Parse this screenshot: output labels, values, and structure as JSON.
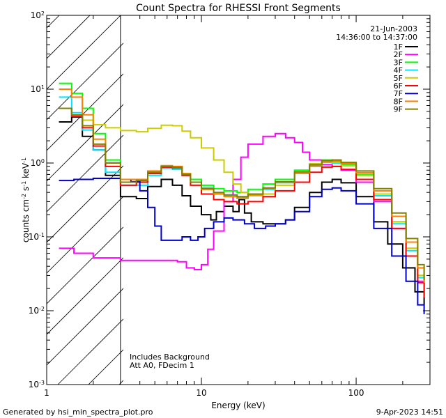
{
  "chart_data": {
    "type": "line",
    "title": "Count Spectra for RHESSI Front Segments",
    "xlabel": "Energy (keV)",
    "ylabel_parts": [
      "counts cm",
      "-2",
      " s",
      "-1",
      " keV",
      "-1"
    ],
    "xscale": "log",
    "yscale": "log",
    "xlim": [
      1,
      300
    ],
    "ylim": [
      0.001,
      100
    ],
    "x_ticks": [
      {
        "v": 1,
        "label": "1"
      },
      {
        "v": 10,
        "label": "10"
      },
      {
        "v": 100,
        "label": "100"
      }
    ],
    "y_ticks": [
      {
        "v": 0.001,
        "base": "10",
        "exp": "-3"
      },
      {
        "v": 0.01,
        "base": "10",
        "exp": "-2"
      },
      {
        "v": 0.1,
        "base": "10",
        "exp": "-1"
      },
      {
        "v": 1,
        "base": "10",
        "exp": "0"
      },
      {
        "v": 10,
        "base": "10",
        "exp": "1"
      },
      {
        "v": 100,
        "base": "10",
        "exp": "2"
      }
    ],
    "date_label": "21-Jun-2003",
    "time_label": "14:36:00 to 14:37:00",
    "hatched_region_kev": [
      1,
      3
    ],
    "annotations": [
      "Includes Background",
      "Att A0, FDecim 1"
    ],
    "series": [
      {
        "name": "1F",
        "color": "#000000",
        "points": [
          [
            1.2,
            3.6
          ],
          [
            1.45,
            4.2
          ],
          [
            1.7,
            2.3
          ],
          [
            2.0,
            1.5
          ],
          [
            2.4,
            0.68
          ],
          [
            3.0,
            0.35
          ],
          [
            3.8,
            0.33
          ],
          [
            4.5,
            0.48
          ],
          [
            5.5,
            0.6
          ],
          [
            6.5,
            0.5
          ],
          [
            7.5,
            0.36
          ],
          [
            8.5,
            0.26
          ],
          [
            10,
            0.2
          ],
          [
            11.5,
            0.17
          ],
          [
            12.5,
            0.22
          ],
          [
            14,
            0.26
          ],
          [
            16,
            0.22
          ],
          [
            17.5,
            0.32
          ],
          [
            19,
            0.21
          ],
          [
            21,
            0.16
          ],
          [
            25,
            0.15
          ],
          [
            30,
            0.15
          ],
          [
            35,
            0.17
          ],
          [
            40,
            0.25
          ],
          [
            50,
            0.4
          ],
          [
            60,
            0.55
          ],
          [
            70,
            0.6
          ],
          [
            80,
            0.54
          ],
          [
            100,
            0.35
          ],
          [
            130,
            0.16
          ],
          [
            160,
            0.08
          ],
          [
            200,
            0.038
          ],
          [
            240,
            0.018
          ],
          [
            275,
            0.012
          ]
        ]
      },
      {
        "name": "2F",
        "color": "#ff00ff",
        "points": [
          [
            1.2,
            0.07
          ],
          [
            1.5,
            0.06
          ],
          [
            2.0,
            0.052
          ],
          [
            3.0,
            0.048
          ],
          [
            5.0,
            0.048
          ],
          [
            7.0,
            0.046
          ],
          [
            8.0,
            0.038
          ],
          [
            9.0,
            0.036
          ],
          [
            10,
            0.042
          ],
          [
            11,
            0.068
          ],
          [
            12,
            0.12
          ],
          [
            14,
            0.3
          ],
          [
            16,
            0.6
          ],
          [
            18,
            1.2
          ],
          [
            20,
            1.8
          ],
          [
            25,
            2.3
          ],
          [
            30,
            2.5
          ],
          [
            35,
            2.2
          ],
          [
            40,
            1.9
          ],
          [
            45,
            1.4
          ],
          [
            50,
            1.1
          ],
          [
            60,
            0.95
          ],
          [
            70,
            0.9
          ],
          [
            80,
            0.8
          ],
          [
            100,
            0.55
          ],
          [
            130,
            0.3
          ],
          [
            170,
            0.13
          ],
          [
            210,
            0.055
          ],
          [
            250,
            0.025
          ],
          [
            275,
            0.016
          ]
        ]
      },
      {
        "name": "3F",
        "color": "#00ff00",
        "points": [
          [
            1.2,
            12
          ],
          [
            1.45,
            8.8
          ],
          [
            1.7,
            5.5
          ],
          [
            2.0,
            2.5
          ],
          [
            2.4,
            1.1
          ],
          [
            3.0,
            0.6
          ],
          [
            3.8,
            0.58
          ],
          [
            4.5,
            0.75
          ],
          [
            5.5,
            0.9
          ],
          [
            6.5,
            0.88
          ],
          [
            7.5,
            0.72
          ],
          [
            8.5,
            0.6
          ],
          [
            10,
            0.5
          ],
          [
            12,
            0.45
          ],
          [
            14,
            0.42
          ],
          [
            17,
            0.4
          ],
          [
            20,
            0.44
          ],
          [
            25,
            0.52
          ],
          [
            30,
            0.6
          ],
          [
            40,
            0.8
          ],
          [
            50,
            0.97
          ],
          [
            60,
            1.1
          ],
          [
            70,
            1.05
          ],
          [
            80,
            0.95
          ],
          [
            100,
            0.7
          ],
          [
            130,
            0.38
          ],
          [
            170,
            0.16
          ],
          [
            210,
            0.07
          ],
          [
            250,
            0.03
          ],
          [
            275,
            0.02
          ]
        ]
      },
      {
        "name": "4F",
        "color": "#00e5ff",
        "points": [
          [
            1.2,
            7.8
          ],
          [
            1.45,
            4.8
          ],
          [
            1.7,
            2.8
          ],
          [
            2.0,
            1.5
          ],
          [
            2.4,
            0.75
          ],
          [
            3.0,
            0.5
          ],
          [
            3.8,
            0.5
          ],
          [
            4.5,
            0.68
          ],
          [
            5.5,
            0.85
          ],
          [
            6.5,
            0.82
          ],
          [
            7.5,
            0.68
          ],
          [
            8.5,
            0.55
          ],
          [
            10,
            0.46
          ],
          [
            12,
            0.4
          ],
          [
            14,
            0.36
          ],
          [
            17,
            0.33
          ],
          [
            20,
            0.36
          ],
          [
            25,
            0.44
          ],
          [
            30,
            0.54
          ],
          [
            40,
            0.72
          ],
          [
            50,
            0.9
          ],
          [
            60,
            1.02
          ],
          [
            70,
            1.0
          ],
          [
            80,
            0.92
          ],
          [
            100,
            0.68
          ],
          [
            130,
            0.36
          ],
          [
            170,
            0.15
          ],
          [
            210,
            0.065
          ],
          [
            250,
            0.028
          ],
          [
            275,
            0.018
          ]
        ]
      },
      {
        "name": "5F",
        "color": "#cccc00",
        "points": [
          [
            1.2,
            5.5
          ],
          [
            1.45,
            4.3
          ],
          [
            1.7,
            3.8
          ],
          [
            2.0,
            3.3
          ],
          [
            2.4,
            3.0
          ],
          [
            3.0,
            2.75
          ],
          [
            3.8,
            2.65
          ],
          [
            4.5,
            2.95
          ],
          [
            5.5,
            3.25
          ],
          [
            6.5,
            3.2
          ],
          [
            7.5,
            2.7
          ],
          [
            8.5,
            2.2
          ],
          [
            10,
            1.6
          ],
          [
            12,
            1.1
          ],
          [
            14,
            0.75
          ],
          [
            16,
            0.52
          ],
          [
            18,
            0.4
          ],
          [
            20,
            0.36
          ],
          [
            25,
            0.38
          ],
          [
            30,
            0.5
          ],
          [
            40,
            0.75
          ],
          [
            50,
            0.98
          ],
          [
            60,
            1.05
          ],
          [
            70,
            1.02
          ],
          [
            80,
            0.92
          ],
          [
            100,
            0.68
          ],
          [
            130,
            0.38
          ],
          [
            170,
            0.16
          ],
          [
            210,
            0.07
          ],
          [
            250,
            0.03
          ],
          [
            275,
            0.02
          ]
        ]
      },
      {
        "name": "6F",
        "color": "#ff0000",
        "points": [
          [
            1.2,
            5.5
          ],
          [
            1.45,
            4.3
          ],
          [
            1.7,
            3.0
          ],
          [
            2.0,
            1.7
          ],
          [
            2.4,
            0.9
          ],
          [
            3.0,
            0.5
          ],
          [
            3.8,
            0.55
          ],
          [
            4.5,
            0.72
          ],
          [
            5.5,
            0.88
          ],
          [
            6.5,
            0.86
          ],
          [
            7.5,
            0.68
          ],
          [
            8.5,
            0.5
          ],
          [
            10,
            0.38
          ],
          [
            12,
            0.32
          ],
          [
            14,
            0.3
          ],
          [
            17,
            0.28
          ],
          [
            20,
            0.3
          ],
          [
            25,
            0.35
          ],
          [
            30,
            0.42
          ],
          [
            40,
            0.55
          ],
          [
            50,
            0.75
          ],
          [
            60,
            0.88
          ],
          [
            70,
            0.9
          ],
          [
            80,
            0.82
          ],
          [
            100,
            0.6
          ],
          [
            130,
            0.32
          ],
          [
            170,
            0.13
          ],
          [
            210,
            0.055
          ],
          [
            250,
            0.024
          ],
          [
            275,
            0.015
          ]
        ]
      },
      {
        "name": "7F",
        "color": "#0000cc",
        "points": [
          [
            1.2,
            0.58
          ],
          [
            1.5,
            0.6
          ],
          [
            2.0,
            0.62
          ],
          [
            2.5,
            0.62
          ],
          [
            3.0,
            0.6
          ],
          [
            3.5,
            0.56
          ],
          [
            4.0,
            0.42
          ],
          [
            4.5,
            0.25
          ],
          [
            5.0,
            0.14
          ],
          [
            5.5,
            0.09
          ],
          [
            6.5,
            0.09
          ],
          [
            7.5,
            0.1
          ],
          [
            8.5,
            0.09
          ],
          [
            9.5,
            0.1
          ],
          [
            10.5,
            0.13
          ],
          [
            12,
            0.16
          ],
          [
            14,
            0.18
          ],
          [
            16,
            0.17
          ],
          [
            19,
            0.15
          ],
          [
            22,
            0.13
          ],
          [
            26,
            0.14
          ],
          [
            30,
            0.15
          ],
          [
            35,
            0.17
          ],
          [
            40,
            0.22
          ],
          [
            50,
            0.35
          ],
          [
            60,
            0.44
          ],
          [
            70,
            0.46
          ],
          [
            80,
            0.42
          ],
          [
            100,
            0.28
          ],
          [
            130,
            0.13
          ],
          [
            170,
            0.055
          ],
          [
            210,
            0.025
          ],
          [
            250,
            0.012
          ],
          [
            275,
            0.009
          ]
        ]
      },
      {
        "name": "8F",
        "color": "#ff8000",
        "points": [
          [
            1.2,
            10
          ],
          [
            1.45,
            7.8
          ],
          [
            1.7,
            4.5
          ],
          [
            2.0,
            2.1
          ],
          [
            2.4,
            1.0
          ],
          [
            3.0,
            0.6
          ],
          [
            3.8,
            0.6
          ],
          [
            4.5,
            0.78
          ],
          [
            5.5,
            0.92
          ],
          [
            6.5,
            0.9
          ],
          [
            7.5,
            0.72
          ],
          [
            8.5,
            0.55
          ],
          [
            10,
            0.44
          ],
          [
            12,
            0.38
          ],
          [
            14,
            0.35
          ],
          [
            17,
            0.34
          ],
          [
            20,
            0.37
          ],
          [
            25,
            0.45
          ],
          [
            30,
            0.55
          ],
          [
            40,
            0.74
          ],
          [
            50,
            0.92
          ],
          [
            60,
            1.05
          ],
          [
            70,
            1.06
          ],
          [
            80,
            0.98
          ],
          [
            100,
            0.74
          ],
          [
            130,
            0.42
          ],
          [
            170,
            0.19
          ],
          [
            210,
            0.085
          ],
          [
            250,
            0.038
          ],
          [
            275,
            0.024
          ]
        ]
      },
      {
        "name": "9F",
        "color": "#808000",
        "points": [
          [
            1.2,
            5.5
          ],
          [
            1.45,
            4.5
          ],
          [
            1.7,
            3.2
          ],
          [
            2.0,
            1.8
          ],
          [
            2.4,
            1.0
          ],
          [
            3.0,
            0.55
          ],
          [
            3.8,
            0.58
          ],
          [
            4.5,
            0.75
          ],
          [
            5.5,
            0.9
          ],
          [
            6.5,
            0.88
          ],
          [
            7.5,
            0.7
          ],
          [
            8.5,
            0.55
          ],
          [
            10,
            0.45
          ],
          [
            12,
            0.4
          ],
          [
            14,
            0.37
          ],
          [
            17,
            0.35
          ],
          [
            20,
            0.38
          ],
          [
            25,
            0.46
          ],
          [
            30,
            0.56
          ],
          [
            40,
            0.76
          ],
          [
            50,
            0.95
          ],
          [
            60,
            1.08
          ],
          [
            70,
            1.1
          ],
          [
            80,
            1.02
          ],
          [
            100,
            0.78
          ],
          [
            130,
            0.45
          ],
          [
            170,
            0.21
          ],
          [
            210,
            0.095
          ],
          [
            250,
            0.042
          ],
          [
            275,
            0.026
          ]
        ]
      }
    ]
  },
  "footer": {
    "generated_by": "Generated by hsi_min_spectra_plot.pro",
    "timestamp": "9-Apr-2023 14:51"
  }
}
